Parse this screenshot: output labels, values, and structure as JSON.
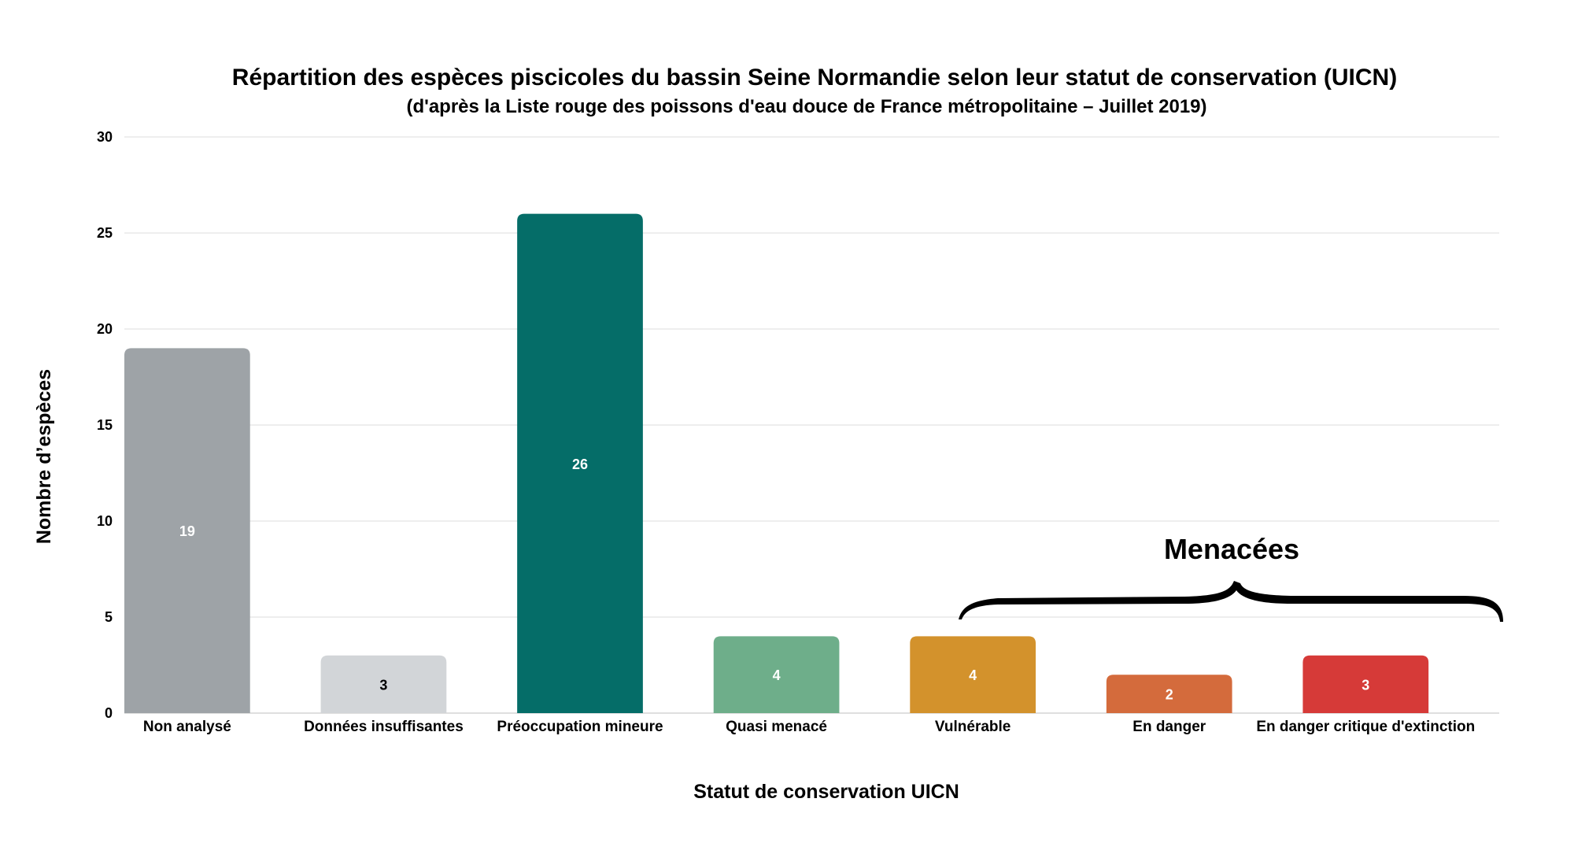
{
  "chart_data": {
    "type": "bar",
    "title": "Répartition des espèces piscicoles du bassin Seine Normandie selon leur statut de conservation (UICN)",
    "subtitle": "(d'après la Liste rouge des poissons d'eau douce de France métropolitaine – Juillet 2019)",
    "xlabel": "Statut de conservation UICN",
    "ylabel": "Nombre d’espèces",
    "ylim": [
      0,
      30
    ],
    "yticks": [
      0,
      5,
      10,
      15,
      20,
      25,
      30
    ],
    "grid": true,
    "categories": [
      "Non analysé",
      "Données insuffisantes",
      "Préoccupation mineure",
      "Quasi menacé",
      "Vulnérable",
      "En danger",
      "En danger critique d'extinction"
    ],
    "values": [
      19,
      3,
      26,
      4,
      4,
      2,
      3
    ],
    "value_labels": [
      "19",
      "3",
      "26",
      "4",
      "4",
      "2",
      "3"
    ],
    "colors": [
      "#9ea3a7",
      "#d2d5d8",
      "#056d68",
      "#6eae8a",
      "#d3922c",
      "#d46b3c",
      "#d63a38"
    ],
    "value_label_colors": [
      "#ffffff",
      "#000000",
      "#ffffff",
      "#ffffff",
      "#ffffff",
      "#ffffff",
      "#ffffff"
    ],
    "annotation": {
      "text": "Menacées",
      "spans_categories": [
        "Vulnérable",
        "En danger",
        "En danger critique d'extinction"
      ]
    }
  }
}
